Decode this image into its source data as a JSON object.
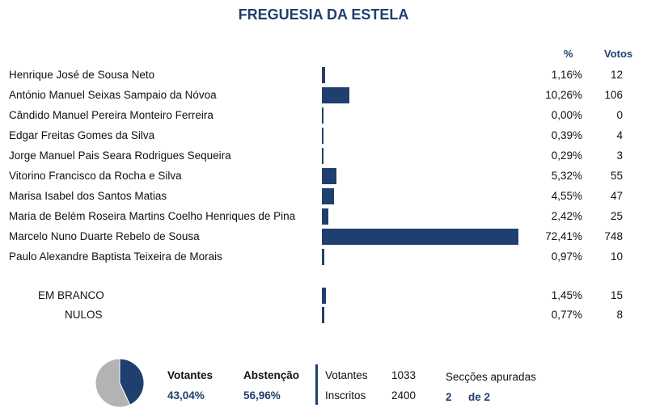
{
  "title": "FREGUESIA DA ESTELA",
  "columns": {
    "pct": "%",
    "votes": "Votos"
  },
  "chart_data": {
    "type": "bar",
    "orientation": "horizontal",
    "categories": [
      "Henrique José de Sousa Neto",
      "António Manuel Seixas Sampaio da Nóvoa",
      "Cândido Manuel Pereira Monteiro Ferreira",
      "Edgar Freitas Gomes da Silva",
      "Jorge Manuel Pais Seara Rodrigues Sequeira",
      "Vitorino Francisco da Rocha e Silva",
      "Marisa Isabel dos Santos Matias",
      "Maria de Belém Roseira Martins Coelho Henriques de Pina",
      "Marcelo Nuno Duarte Rebelo de Sousa",
      "Paulo Alexandre Baptista Teixeira de Morais"
    ],
    "pct_labels": [
      "1,16%",
      "10,26%",
      "0,00%",
      "0,39%",
      "0,29%",
      "5,32%",
      "4,55%",
      "2,42%",
      "72,41%",
      "0,97%"
    ],
    "values": [
      1.16,
      10.26,
      0.0,
      0.39,
      0.29,
      5.32,
      4.55,
      2.42,
      72.41,
      0.97
    ],
    "votes": [
      "12",
      "106",
      "0",
      "4",
      "3",
      "55",
      "47",
      "25",
      "748",
      "10"
    ],
    "extra": [
      {
        "label": "EM BRANCO",
        "pct_label": "1,45%",
        "value": 1.45,
        "votes": "15"
      },
      {
        "label": "NULOS",
        "pct_label": "0,77%",
        "value": 0.77,
        "votes": "8"
      }
    ],
    "xlim": [
      0,
      72.41
    ],
    "color": "#1f3f6e",
    "pie": {
      "type": "pie",
      "slices": [
        {
          "label": "Votantes",
          "value": 43.04,
          "color": "#1f3f6e"
        },
        {
          "label": "Abstenção",
          "value": 56.96,
          "color": "#b3b3b3"
        }
      ]
    }
  },
  "summary": {
    "votantes_label": "Votantes",
    "votantes_value": "43,04%",
    "abstencao_label": "Abstenção",
    "abstencao_value": "56,96%",
    "votantes_count_label": "Votantes",
    "votantes_count": "1033",
    "inscritos_label": "Inscritos",
    "inscritos_count": "2400",
    "seccoes_label": "Secções apuradas",
    "seccoes_done": "2",
    "seccoes_total": "de 2"
  }
}
